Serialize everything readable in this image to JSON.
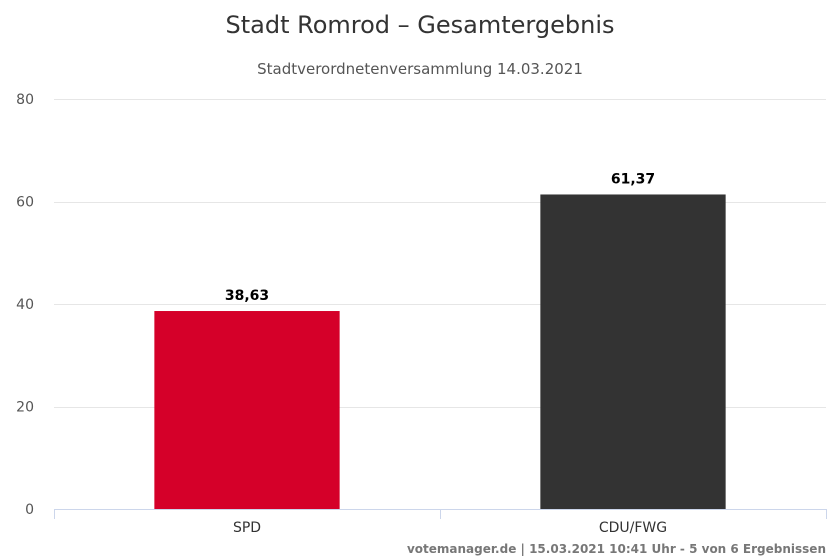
{
  "chart_data": {
    "type": "bar",
    "title": "Stadt Romrod – Gesamtergebnis",
    "subtitle": "Stadtverordnetenversammlung 14.03.2021",
    "xlabel": "",
    "ylabel": "",
    "categories": [
      "SPD",
      "CDU/FWG"
    ],
    "values": [
      38.63,
      61.37
    ],
    "value_labels": [
      "38,63",
      "61,37"
    ],
    "colors": [
      "#d50029",
      "#333333"
    ],
    "ylim": [
      0,
      80
    ],
    "yticks": [
      0,
      20,
      40,
      60,
      80
    ],
    "grid": true,
    "legend": "none"
  },
  "credits": "votemanager.de | 15.03.2021 10:41 Uhr - 5 von 6 Ergebnissen"
}
